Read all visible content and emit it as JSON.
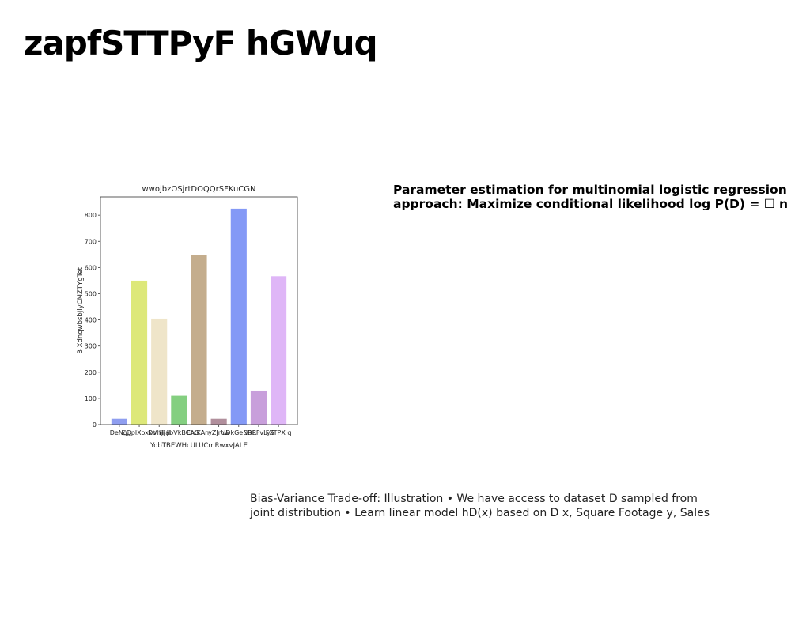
{
  "page": {
    "title": "zapfSTTPyF hGWuq"
  },
  "text_blocks": {
    "parameter_estimation": {
      "line1": "Parameter estimation for multinomial logistic regression",
      "line2": "approach: Maximize conditional likelihood log P(D) = ☐ n"
    },
    "bias_variance": {
      "line1": "Bias-Variance Trade-off: Illustration • We have access to dataset D sampled from",
      "line2": "joint distribution • Learn linear model hD(x) based on D x, Square Footage y, Sales"
    }
  },
  "chart_data": {
    "type": "bar",
    "title": "wwojbzOSjrtDOQQrSFKuCGN",
    "xlabel": "YobTBEWHcULUCmRwxvJALE",
    "ylabel": "B XdnqwbsbJlyCMZTYgTet",
    "categories": [
      "DeNgj",
      "EQplXoxkb",
      "DVhji jI",
      "HJabVkBCAG",
      "ErcKAm",
      "yZJmw",
      "UDkGeEOR",
      "NREFvLyS",
      "FXTPX q"
    ],
    "values": [
      22,
      550,
      405,
      110,
      648,
      22,
      825,
      130,
      567
    ],
    "colors": [
      "#8f9ef0",
      "#dde879",
      "#efe5c9",
      "#84cf80",
      "#c4ad8d",
      "#b18f9c",
      "#8499f6",
      "#c89fdb",
      "#dfb6f7"
    ],
    "ylim": [
      0,
      870
    ],
    "yticks": [
      0,
      100,
      200,
      300,
      400,
      500,
      600,
      700,
      800
    ],
    "grid": false,
    "legend": "none"
  }
}
